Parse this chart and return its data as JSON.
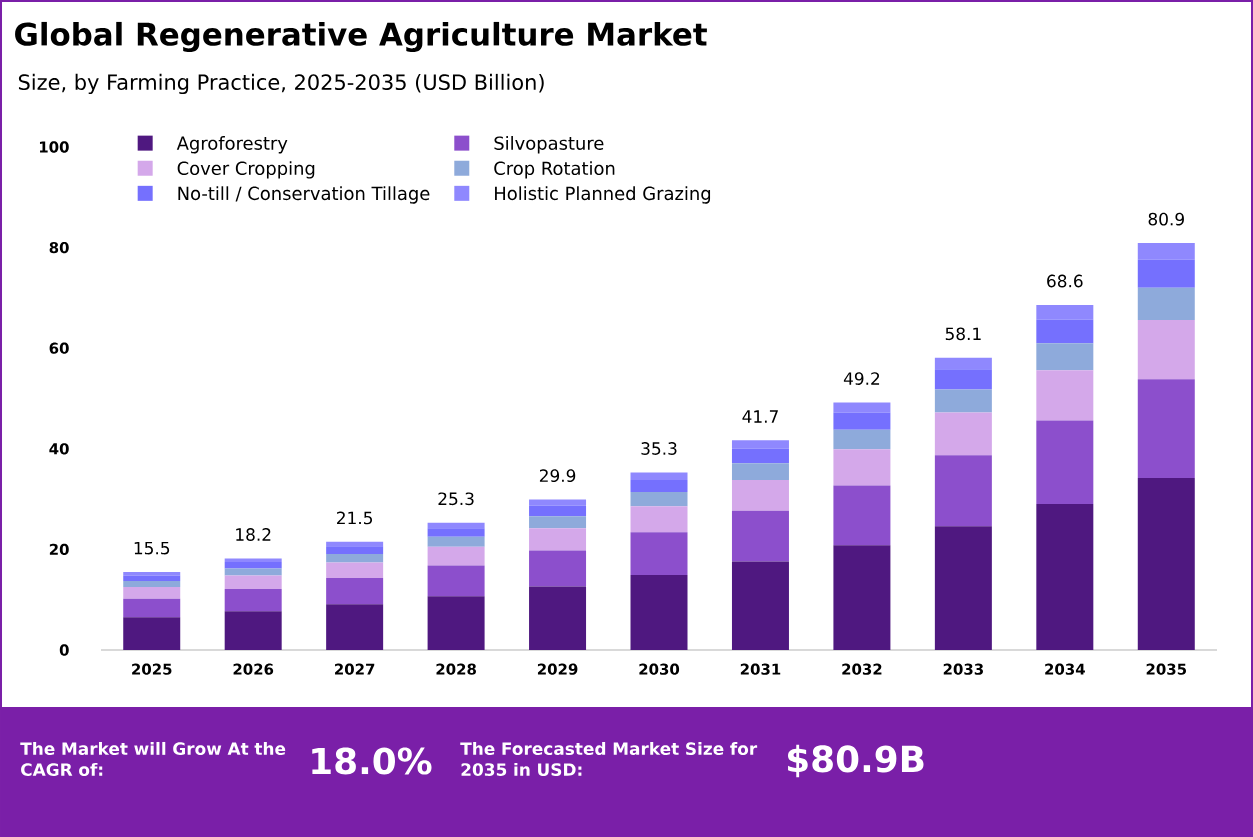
{
  "chart_data": {
    "type": "bar",
    "stacked": true,
    "title": "Global Regenerative Agriculture Market",
    "subtitle": "Size, by Farming Practice, 2025-2035 (USD Billion)",
    "categories": [
      "2025",
      "2026",
      "2027",
      "2028",
      "2029",
      "2030",
      "2031",
      "2032",
      "2033",
      "2034",
      "2035"
    ],
    "series": [
      {
        "name": "Agroforestry",
        "color": "#4f1880",
        "values": [
          6.5,
          7.7,
          9.1,
          10.7,
          12.6,
          14.9,
          17.6,
          20.8,
          24.6,
          29.0,
          34.2
        ]
      },
      {
        "name": "Silvopasture",
        "color": "#8c4fcc",
        "values": [
          3.7,
          4.4,
          5.2,
          6.1,
          7.2,
          8.5,
          10.1,
          11.9,
          14.1,
          16.6,
          19.6
        ]
      },
      {
        "name": "Cover Cropping",
        "color": "#d4a8ea",
        "values": [
          2.3,
          2.7,
          3.1,
          3.7,
          4.4,
          5.2,
          6.1,
          7.2,
          8.5,
          10.0,
          11.8
        ]
      },
      {
        "name": "Crop Rotation",
        "color": "#8eaadb",
        "values": [
          1.2,
          1.4,
          1.7,
          2.0,
          2.4,
          2.8,
          3.3,
          3.9,
          4.6,
          5.4,
          6.4
        ]
      },
      {
        "name": "No-till / Conservation Tillage",
        "color": "#7570fe",
        "values": [
          1.1,
          1.3,
          1.5,
          1.7,
          2.1,
          2.4,
          2.9,
          3.4,
          4.0,
          4.7,
          5.6
        ]
      },
      {
        "name": "Holistic Planned Grazing",
        "color": "#8f88fe",
        "values": [
          0.7,
          0.7,
          0.9,
          1.1,
          1.2,
          1.5,
          1.7,
          2.0,
          2.3,
          2.9,
          3.3
        ]
      }
    ],
    "totals": [
      "15.5",
      "18.2",
      "21.5",
      "25.3",
      "29.9",
      "35.3",
      "41.7",
      "49.2",
      "58.1",
      "68.6",
      "80.9"
    ],
    "ylim": [
      0,
      100
    ],
    "yticks": [
      0,
      20,
      40,
      60,
      80,
      100
    ],
    "legend": "top left",
    "annotations": [
      "The Market will Grow At the CAGR of:",
      "18.0%",
      "The Forecasted Market Size for 2035 in USD:",
      "$80.9B"
    ]
  }
}
